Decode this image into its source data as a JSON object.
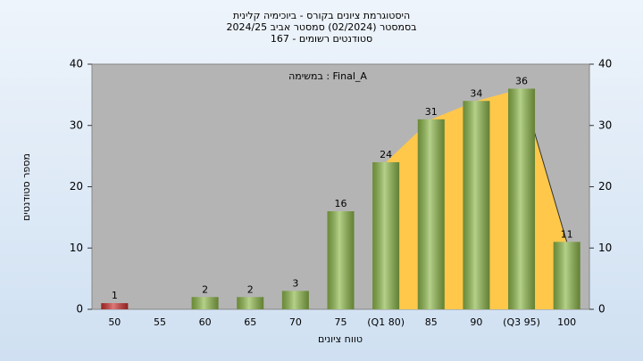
{
  "chart_data": {
    "type": "bar",
    "title": [
      "היסטוגרמת ציונים בקורס - ביוכימיה קלינית",
      "בסמסטר (02/2024) סמסטר אביב 2024/25",
      "סטודנטים רשומים - 167"
    ],
    "annotation": "במשימה : Final_A",
    "x_label": "טווח ציונים",
    "y_label": "מספר סטודנטים",
    "categories": [
      "50",
      "55",
      "60",
      "65",
      "70",
      "75",
      "(Q1 80)",
      "85",
      "90",
      "(Q3 95)",
      "100"
    ],
    "values": [
      1,
      null,
      2,
      2,
      3,
      16,
      24,
      31,
      34,
      36,
      11
    ],
    "colors": [
      "#cc3030",
      "#8db84a",
      "#8db84a",
      "#8db84a",
      "#8db84a",
      "#8db84a",
      "#8db84a",
      "#8db84a",
      "#8db84a",
      "#8db84a",
      "#8db84a"
    ],
    "ylim": [
      0,
      40
    ],
    "yticks": [
      0,
      10,
      20,
      30,
      40
    ],
    "y2lim": [
      0,
      40
    ],
    "y2ticks": [
      0,
      10,
      20,
      30,
      40
    ],
    "grid": false
  }
}
